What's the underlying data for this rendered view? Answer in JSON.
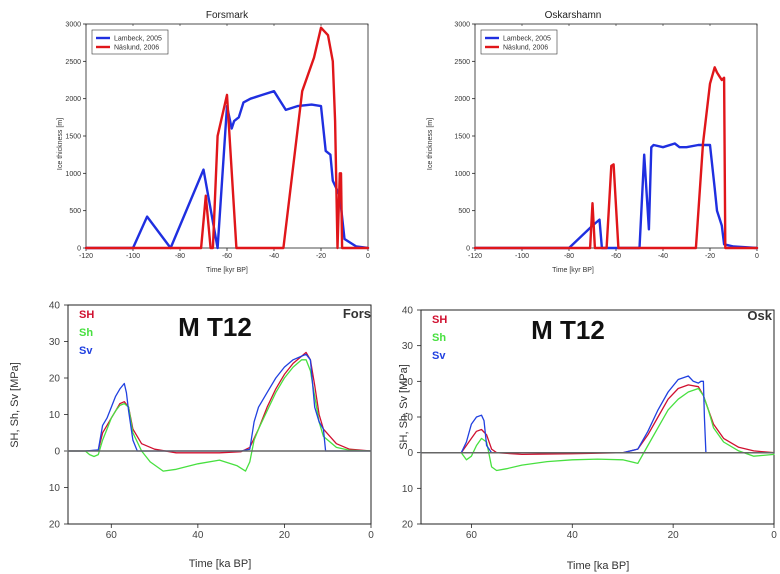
{
  "chart_data": [
    {
      "type": "line",
      "title": "Forsmark",
      "xlabel": "Time [kyr BP]",
      "ylabel": "Ice thickness [m]",
      "xlim": [
        -120,
        0
      ],
      "ylim": [
        0,
        3000
      ],
      "xticks": [
        -120,
        -100,
        -80,
        -60,
        -40,
        -20,
        0
      ],
      "yticks": [
        0,
        500,
        1000,
        1500,
        2000,
        2500,
        3000
      ],
      "xtick_labels": [
        "-120",
        "-100",
        "-80",
        "-60",
        "-40",
        "-20",
        "0"
      ],
      "ytick_labels": [
        "0",
        "500",
        "1000",
        "1500",
        "2000",
        "2500",
        "3000"
      ],
      "legend_position": "top-left",
      "series": [
        {
          "name": "Lambeck, 2005",
          "color": "#1f2fe0",
          "x": [
            -120,
            -100,
            -94,
            -84,
            -70,
            -64,
            -60,
            -58,
            -57,
            -55,
            -53,
            -50,
            -45,
            -40,
            -35,
            -30,
            -24,
            -20,
            -18,
            -16,
            -15,
            -12,
            -10,
            -8,
            -5,
            0
          ],
          "y": [
            0,
            0,
            420,
            0,
            1050,
            0,
            1900,
            1600,
            1700,
            1750,
            1950,
            2000,
            2050,
            2100,
            1850,
            1900,
            1920,
            1900,
            1300,
            1250,
            900,
            700,
            120,
            80,
            20,
            0
          ]
        },
        {
          "name": "Näslund, 2006",
          "color": "#e0161a",
          "x": [
            -120,
            -71,
            -69,
            -67,
            -66,
            -64,
            -60,
            -56,
            -55,
            -50,
            -45,
            -40,
            -38,
            -36,
            -28,
            -23,
            -20,
            -17,
            -15,
            -14,
            -13,
            -12,
            -11.5,
            -11,
            -10.5,
            -10,
            0
          ],
          "y": [
            0,
            0,
            700,
            0,
            0,
            1500,
            2050,
            0,
            0,
            0,
            0,
            0,
            0,
            0,
            2100,
            2550,
            2950,
            2850,
            2500,
            1700,
            0,
            1000,
            1000,
            0,
            0,
            0,
            0
          ]
        }
      ]
    },
    {
      "type": "line",
      "title": "Oskarshamn",
      "xlabel": "Time [kyr BP]",
      "ylabel": "Ice thickness [m]",
      "xlim": [
        -120,
        0
      ],
      "ylim": [
        0,
        3000
      ],
      "xticks": [
        -120,
        -100,
        -80,
        -60,
        -40,
        -20,
        0
      ],
      "yticks": [
        0,
        500,
        1000,
        1500,
        2000,
        2500,
        3000
      ],
      "xtick_labels": [
        "-120",
        "-100",
        "-80",
        "-60",
        "-40",
        "-20",
        "0"
      ],
      "ytick_labels": [
        "0",
        "500",
        "1000",
        "1500",
        "2000",
        "2500",
        "3000"
      ],
      "legend_position": "top-left",
      "series": [
        {
          "name": "Lambeck, 2005",
          "color": "#1f2fe0",
          "x": [
            -120,
            -80,
            -70,
            -67,
            -66,
            -58,
            -50,
            -48,
            -46,
            -45,
            -44,
            -40,
            -35,
            -33,
            -30,
            -25,
            -20,
            -18,
            -17,
            -16,
            -15,
            -14,
            -10,
            0
          ],
          "y": [
            0,
            0,
            300,
            380,
            0,
            0,
            0,
            1250,
            250,
            1350,
            1380,
            1350,
            1400,
            1350,
            1350,
            1380,
            1380,
            800,
            500,
            400,
            300,
            50,
            20,
            0
          ]
        },
        {
          "name": "Näslund, 2006",
          "color": "#e0161a",
          "x": [
            -120,
            -71,
            -70,
            -69,
            -64,
            -62,
            -61,
            -59,
            -26,
            -23,
            -20,
            -18,
            -17,
            -16,
            -15,
            -14,
            -13.5,
            0
          ],
          "y": [
            0,
            0,
            600,
            0,
            0,
            1100,
            1120,
            0,
            0,
            1400,
            2200,
            2420,
            2350,
            2300,
            2250,
            2280,
            0,
            0
          ]
        }
      ]
    },
    {
      "type": "line",
      "title": "M T12",
      "site_label": "Fors",
      "xlabel": "Time [ka BP]",
      "ylabel": "SH, Sh, Sv [MPa]",
      "xlim": [
        70,
        0
      ],
      "ylim": [
        -20,
        40
      ],
      "xticks": [
        60,
        40,
        20,
        0
      ],
      "yticks": [
        40,
        30,
        20,
        10,
        0,
        -10,
        -20
      ],
      "xtick_labels": [
        "60",
        "40",
        "20",
        "0"
      ],
      "ytick_labels": [
        "40",
        "30",
        "20",
        "10",
        "0",
        "10",
        "20"
      ],
      "legend_position": "top-left",
      "series": [
        {
          "name": "SH",
          "color": "#d01030",
          "x": [
            70,
            66,
            63,
            62,
            61,
            60,
            59,
            58,
            57,
            56,
            55,
            53,
            50,
            45,
            40,
            35,
            30,
            28,
            26,
            24,
            22,
            20,
            18,
            16,
            15,
            14,
            13,
            12,
            11,
            8,
            5,
            0
          ],
          "y": [
            0,
            0,
            0.2,
            5,
            7,
            9,
            11,
            13,
            13.5,
            12,
            6,
            2,
            0.5,
            -0.5,
            -0.5,
            -0.5,
            -0.2,
            1,
            6,
            12,
            17,
            21,
            24,
            26,
            27,
            25,
            18,
            10,
            6,
            2,
            0.5,
            0
          ]
        },
        {
          "name": "Sh",
          "color": "#48e040",
          "x": [
            70,
            66,
            65,
            64,
            63,
            62,
            61,
            60,
            59,
            58,
            57,
            56,
            55,
            53,
            51,
            48,
            45,
            40,
            35,
            31,
            29,
            28,
            27,
            26,
            24,
            22,
            20,
            18,
            16,
            15,
            14,
            13,
            12,
            11,
            8,
            5,
            0
          ],
          "y": [
            0,
            0,
            -1,
            -1.5,
            -1,
            3,
            6,
            9,
            11,
            12.5,
            13,
            12,
            5,
            0,
            -3,
            -5.5,
            -5,
            -3.5,
            -2.5,
            -4,
            -5.5,
            -3,
            3,
            6,
            11,
            16,
            20,
            23,
            25,
            25,
            22,
            15,
            8,
            4,
            1,
            0.2,
            0
          ]
        },
        {
          "name": "Sv",
          "color": "#2040e0",
          "x": [
            70,
            66,
            63,
            62,
            61,
            60,
            59,
            58,
            57,
            56.5,
            56,
            55,
            54,
            50,
            40,
            30,
            28,
            27,
            26,
            24,
            22,
            20,
            18,
            16,
            15,
            14,
            13,
            12,
            11,
            10.5,
            10,
            0
          ],
          "y": [
            0,
            0,
            0.3,
            7,
            9,
            12,
            15,
            17,
            18.5,
            16,
            11,
            3,
            0,
            0,
            0,
            0,
            0.5,
            8,
            12,
            16,
            20,
            23,
            25,
            26,
            26.5,
            25,
            12,
            8,
            6,
            0,
            0,
            0
          ]
        },
        {
          "name": "",
          "color": "#666666",
          "x": [
            70,
            0
          ],
          "y": [
            0,
            0
          ]
        }
      ]
    },
    {
      "type": "line",
      "title": "M T12",
      "site_label": "Osk",
      "xlabel": "Time [ka BP]",
      "ylabel": "SH, Sh, Sv [MPa]",
      "xlim": [
        70,
        0
      ],
      "ylim": [
        -20,
        40
      ],
      "xticks": [
        60,
        40,
        20,
        0
      ],
      "yticks": [
        40,
        30,
        20,
        10,
        0,
        -10,
        -20
      ],
      "xtick_labels": [
        "60",
        "40",
        "20",
        "0"
      ],
      "ytick_labels": [
        "40",
        "30",
        "20",
        "10",
        "0",
        "10",
        "20"
      ],
      "legend_position": "top-left",
      "series": [
        {
          "name": "SH",
          "color": "#d01030",
          "x": [
            70,
            62,
            61,
            60,
            59,
            58,
            57,
            56,
            55,
            50,
            40,
            30,
            27,
            25,
            23,
            21,
            19,
            17,
            15,
            14,
            13,
            12,
            10,
            7,
            4,
            0
          ],
          "y": [
            0,
            0,
            2,
            4,
            6,
            6.5,
            5,
            1,
            0,
            -0.5,
            -0.3,
            0,
            1,
            5,
            10,
            15,
            18,
            19,
            18.5,
            16,
            12,
            8,
            4,
            1.5,
            0.5,
            0
          ]
        },
        {
          "name": "Sh",
          "color": "#48e040",
          "x": [
            70,
            62,
            61,
            60,
            59,
            58,
            57,
            56,
            55,
            53,
            50,
            45,
            40,
            35,
            30,
            27,
            25,
            23,
            21,
            19,
            17,
            15,
            14,
            13,
            12,
            10,
            7,
            4,
            0
          ],
          "y": [
            0,
            0,
            -2,
            -1,
            2,
            4,
            3,
            -4,
            -5,
            -4.5,
            -3.5,
            -2.5,
            -2,
            -1.8,
            -2,
            -3,
            2,
            7,
            12,
            15,
            17,
            18,
            16,
            12,
            7,
            3,
            0.5,
            -1,
            -0.5
          ]
        },
        {
          "name": "Sv",
          "color": "#2040e0",
          "x": [
            70,
            62,
            61,
            60,
            59,
            58,
            57.5,
            57,
            56,
            50,
            30,
            27,
            25,
            23,
            21,
            19,
            17,
            16,
            15,
            14.5,
            14,
            13.8,
            13.5,
            0
          ],
          "y": [
            0,
            0,
            3,
            8,
            10,
            10.5,
            9,
            2,
            0,
            0,
            0,
            1,
            6,
            12,
            17,
            20.5,
            21.5,
            20,
            19.5,
            20,
            20,
            10,
            0,
            0
          ]
        },
        {
          "name": "",
          "color": "#666666",
          "x": [
            70,
            0
          ],
          "y": [
            0,
            0
          ]
        }
      ]
    }
  ]
}
